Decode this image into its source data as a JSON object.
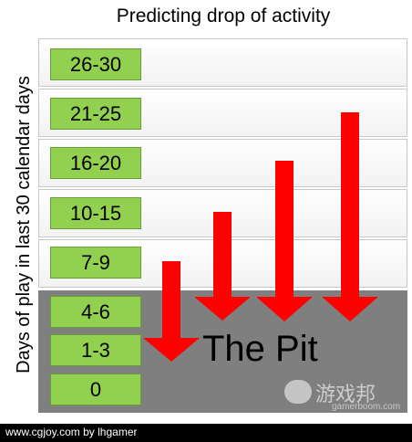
{
  "title": "Predicting drop of activity",
  "y_axis_label": "Days of play in last 30 calendar days",
  "bands": [
    "26-30",
    "21-25",
    "16-20",
    "10-15",
    "7-9"
  ],
  "pit_bands": [
    "4-6",
    "1-3",
    "0"
  ],
  "pit_label": "The Pit",
  "arrow_color": "#ff0000",
  "label_color": "#92d050",
  "pit_color": "#7f7f7f",
  "watermark": {
    "text": "游戏邦",
    "sub": "gamerboom.com"
  },
  "footer": "www.cgjoy.com by lhgamer"
}
